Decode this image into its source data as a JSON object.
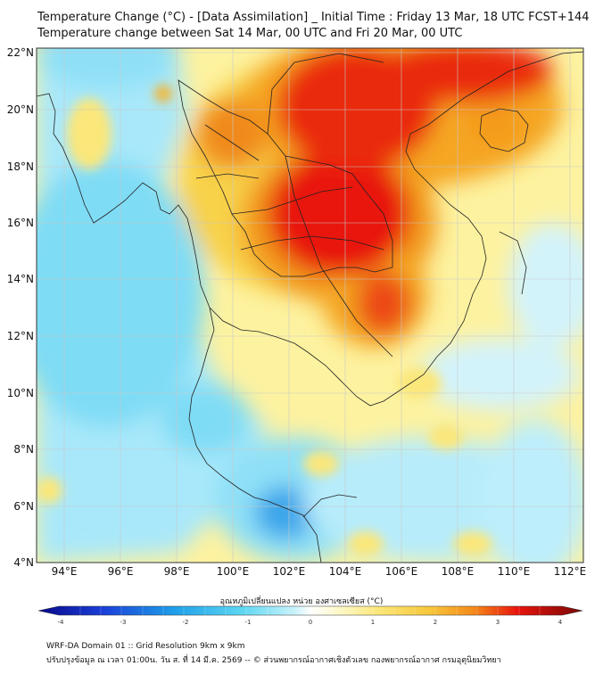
{
  "title_line1": "Temperature Change (°C) - [Data Assimilation] _ Initial Time : Friday 13 Mar, 18 UTC FCST+144",
  "title_line2": "Temperature change between Sat 14 Mar, 00 UTC and Fri 20 Mar, 00 UTC",
  "lat_labels": [
    "22°N",
    "20°N",
    "18°N",
    "16°N",
    "14°N",
    "12°N",
    "10°N",
    "8°N",
    "6°N",
    "4°N"
  ],
  "lon_labels": [
    "94°E",
    "96°E",
    "98°E",
    "100°E",
    "102°E",
    "104°E",
    "106°E",
    "108°E",
    "110°E",
    "112°E"
  ],
  "colorbar": {
    "label": "อุณหภูมิเปลี่ยนแปลง หน่วย องศาเซลเซียส (°C)",
    "ticks": [
      "-4",
      "-3",
      "-2",
      "-1",
      "0",
      "1",
      "2",
      "3",
      "4"
    ]
  },
  "footer_line1": "WRF-DA Domain 01 :: Grid Resolution 9km x 9km",
  "footer_line2": "ปรับปรุงข้อมูล ณ เวลา 01:00น. วัน ส. ที่ 14 มี.ค. 2569 -- © ส่วนพยากรณ์อากาศเชิงตัวเลข กองพยากรณ์อากาศ กรมอุตุนิยมวิทยา",
  "map_extent": {
    "lon_min": 93,
    "lon_max": 112.5,
    "lat_min": 4,
    "lat_max": 22.2
  },
  "colors": {
    "warm_peak": "#e8140c",
    "warm_mid": "#f7a21c",
    "warm_low": "#fbe77a",
    "neutral": "#ffffff",
    "cool_low": "#bfeefb",
    "cool_mid": "#5ed7f2",
    "cool_peak": "#2266e0"
  }
}
